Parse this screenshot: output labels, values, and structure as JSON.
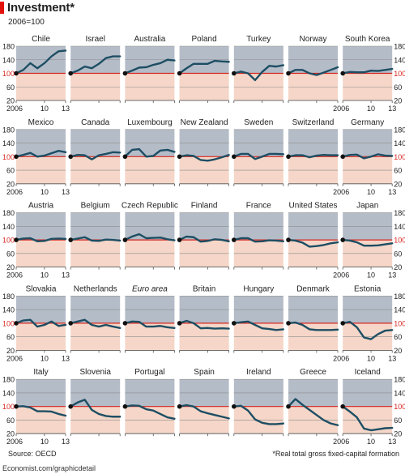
{
  "header": {
    "title": "Investment*",
    "subtitle": "2006=100"
  },
  "footer": {
    "source": "Source: OECD",
    "footnote": "*Real total gross fixed-capital formation",
    "credit": "Economist.com/graphicdetail"
  },
  "colors": {
    "accent": "#e3120b",
    "panel_above": "#b4bcc8",
    "panel_below": "#f5d6c8",
    "baseline": "#d7261e",
    "line": "#1d4e63",
    "gridline": "#8c8c8c"
  },
  "chart_data": {
    "type": "line",
    "title": "Investment*",
    "subtitle": "2006=100",
    "layout": "small-multiples",
    "x": [
      2006,
      2007,
      2008,
      2009,
      2010,
      2011,
      2012,
      2013
    ],
    "x_tick_labels": [
      "2006",
      "10",
      "13"
    ],
    "y_ticks": [
      20,
      60,
      100,
      140,
      180
    ],
    "ylim": [
      20,
      180
    ],
    "baseline": 100,
    "grid": true,
    "series": [
      {
        "name": "Chile",
        "values": [
          100,
          110,
          130,
          115,
          130,
          150,
          165,
          167
        ]
      },
      {
        "name": "Israel",
        "values": [
          100,
          108,
          120,
          115,
          128,
          145,
          150,
          150
        ]
      },
      {
        "name": "Australia",
        "values": [
          100,
          108,
          117,
          118,
          125,
          130,
          140,
          138
        ]
      },
      {
        "name": "Poland",
        "values": [
          100,
          115,
          128,
          128,
          128,
          137,
          135,
          134
        ]
      },
      {
        "name": "Turkey",
        "values": [
          100,
          105,
          100,
          80,
          104,
          122,
          120,
          124
        ]
      },
      {
        "name": "Norway",
        "values": [
          100,
          110,
          110,
          100,
          95,
          102,
          110,
          118
        ]
      },
      {
        "name": "South Korea",
        "values": [
          100,
          104,
          103,
          103,
          108,
          107,
          110,
          113
        ]
      },
      {
        "name": "Mexico",
        "values": [
          100,
          105,
          111,
          100,
          103,
          110,
          117,
          113
        ]
      },
      {
        "name": "Canada",
        "values": [
          100,
          105,
          104,
          92,
          104,
          108,
          113,
          112
        ]
      },
      {
        "name": "Luxembourg",
        "values": [
          100,
          120,
          122,
          100,
          102,
          118,
          120,
          114
        ]
      },
      {
        "name": "New Zealand",
        "values": [
          100,
          104,
          102,
          90,
          88,
          92,
          98,
          105
        ]
      },
      {
        "name": "Sweden",
        "values": [
          100,
          108,
          108,
          93,
          100,
          108,
          108,
          107
        ]
      },
      {
        "name": "Switzerland",
        "values": [
          100,
          104,
          104,
          98,
          103,
          105,
          104,
          104
        ]
      },
      {
        "name": "Germany",
        "values": [
          100,
          105,
          106,
          95,
          100,
          107,
          103,
          102
        ]
      },
      {
        "name": "Austria",
        "values": [
          100,
          104,
          105,
          96,
          97,
          103,
          104,
          103
        ]
      },
      {
        "name": "Belgium",
        "values": [
          100,
          104,
          108,
          98,
          97,
          101,
          100,
          98
        ]
      },
      {
        "name": "Czech Republic",
        "values": [
          100,
          110,
          117,
          105,
          106,
          107,
          102,
          99
        ]
      },
      {
        "name": "Finland",
        "values": [
          100,
          110,
          108,
          95,
          97,
          102,
          100,
          96
        ]
      },
      {
        "name": "France",
        "values": [
          100,
          105,
          105,
          95,
          96,
          99,
          98,
          96
        ]
      },
      {
        "name": "United States",
        "values": [
          100,
          98,
          92,
          80,
          82,
          85,
          90,
          93
        ]
      },
      {
        "name": "Japan",
        "values": [
          100,
          98,
          93,
          83,
          83,
          84,
          87,
          90
        ]
      },
      {
        "name": "Slovakia",
        "values": [
          100,
          108,
          110,
          90,
          95,
          105,
          92,
          95
        ]
      },
      {
        "name": "Netherlands",
        "values": [
          100,
          105,
          110,
          95,
          90,
          95,
          90,
          86
        ]
      },
      {
        "name": "Euro area",
        "values": [
          100,
          105,
          104,
          90,
          90,
          92,
          88,
          86
        ]
      },
      {
        "name": "Britain",
        "values": [
          100,
          107,
          100,
          85,
          86,
          84,
          85,
          84
        ]
      },
      {
        "name": "Hungary",
        "values": [
          100,
          103,
          105,
          95,
          85,
          83,
          80,
          82
        ]
      },
      {
        "name": "Denmark",
        "values": [
          100,
          102,
          95,
          82,
          80,
          80,
          80,
          81
        ]
      },
      {
        "name": "Estonia",
        "values": [
          100,
          104,
          88,
          58,
          53,
          68,
          78,
          80
        ]
      },
      {
        "name": "Italy",
        "values": [
          100,
          101,
          97,
          86,
          86,
          85,
          78,
          73
        ]
      },
      {
        "name": "Slovenia",
        "values": [
          100,
          112,
          120,
          90,
          78,
          72,
          70,
          70
        ]
      },
      {
        "name": "Portugal",
        "values": [
          100,
          103,
          102,
          92,
          88,
          78,
          68,
          64
        ]
      },
      {
        "name": "Spain",
        "values": [
          100,
          104,
          100,
          86,
          80,
          75,
          70,
          65
        ]
      },
      {
        "name": "Ireland",
        "values": [
          100,
          102,
          88,
          62,
          52,
          48,
          48,
          50
        ]
      },
      {
        "name": "Greece",
        "values": [
          100,
          122,
          105,
          90,
          75,
          60,
          50,
          45
        ]
      },
      {
        "name": "Iceland",
        "values": [
          100,
          85,
          68,
          35,
          30,
          33,
          36,
          37
        ]
      }
    ]
  }
}
